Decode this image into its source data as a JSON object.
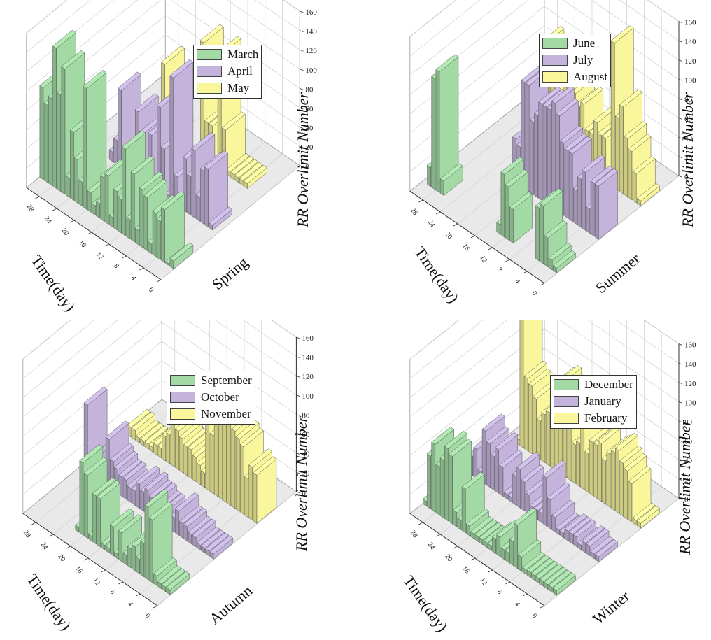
{
  "colors": {
    "green": "#a3d9a5",
    "purple": "#c4b4dc",
    "yellow": "#f9f69b",
    "floor": "#e9e9e9",
    "grid": "#cfcfcf"
  },
  "chart_data": [
    {
      "type": "bar3d",
      "season_label": "Spring",
      "time_label": "Time(day)",
      "z_label": "RR Overlimit Number",
      "z_ticks": [
        "0",
        "20",
        "40",
        "60",
        "80",
        "100",
        "120",
        "140",
        "160"
      ],
      "day_ticks": [
        "0",
        "4",
        "8",
        "12",
        "16",
        "20",
        "24",
        "28"
      ],
      "zlim": [
        0,
        160
      ],
      "legend": [
        "March",
        "April",
        "May"
      ],
      "series": [
        {
          "name": "March",
          "color": "green",
          "values": [
            8,
            2,
            55,
            40,
            45,
            10,
            55,
            60,
            15,
            70,
            20,
            90,
            35,
            40,
            10,
            50,
            45,
            15,
            10,
            20,
            125,
            25,
            45,
            70,
            20,
            130,
            100,
            145,
            90,
            80,
            95
          ]
        },
        {
          "name": "April",
          "color": "purple",
          "values": [
            0,
            5,
            60,
            55,
            25,
            70,
            40,
            55,
            5,
            30,
            130,
            5,
            50,
            90,
            10,
            55,
            5,
            50,
            70,
            30,
            15,
            5,
            80,
            25,
            10
          ]
        },
        {
          "name": "May",
          "color": "yellow",
          "values": [
            0,
            0,
            0,
            5,
            5,
            5,
            5,
            5,
            45,
            120,
            5,
            40,
            40,
            120,
            5,
            0,
            0,
            0,
            0,
            0,
            5,
            10,
            70,
            0
          ]
        }
      ]
    },
    {
      "type": "bar3d",
      "season_label": "Summer",
      "time_label": "Time(day)",
      "z_label": "RR Overlimit Number",
      "z_ticks": [
        "0",
        "20",
        "40",
        "60",
        "80",
        "100",
        "120",
        "140",
        "160"
      ],
      "day_ticks": [
        "0",
        "4",
        "8",
        "12",
        "16",
        "20",
        "24",
        "28"
      ],
      "zlim": [
        0,
        160
      ],
      "legend": [
        "June",
        "July",
        "August"
      ],
      "series": [
        {
          "name": "June",
          "color": "green",
          "values": [
            5,
            10,
            30,
            60,
            55,
            0,
            0,
            0,
            0,
            0,
            35,
            55,
            65,
            10,
            0,
            0,
            0,
            0,
            0,
            0,
            0,
            0,
            0,
            0,
            0,
            0,
            15,
            125,
            115,
            20
          ]
        },
        {
          "name": "July",
          "color": "purple",
          "values": [
            55,
            55,
            25,
            60,
            50,
            35,
            70,
            70,
            75,
            100,
            110,
            100,
            100,
            100,
            85,
            75,
            110,
            110,
            40,
            45
          ]
        },
        {
          "name": "August",
          "color": "yellow",
          "values": [
            5,
            30,
            50,
            60,
            90,
            75,
            150,
            5,
            45,
            45,
            55,
            40,
            40,
            65,
            60,
            70,
            75,
            70,
            60,
            80,
            85,
            75,
            100,
            50
          ]
        }
      ]
    },
    {
      "type": "bar3d",
      "season_label": "Autumn",
      "time_label": "Time(day)",
      "z_label": "RR Overlimit Number",
      "z_ticks": [
        "0",
        "20",
        "40",
        "60",
        "80",
        "100",
        "120",
        "140",
        "160"
      ],
      "day_ticks": [
        "0",
        "4",
        "8",
        "12",
        "16",
        "20",
        "24",
        "28"
      ],
      "zlim": [
        0,
        160
      ],
      "legend": [
        "September",
        "October",
        "November"
      ],
      "series": [
        {
          "name": "September",
          "color": "green",
          "values": [
            5,
            5,
            5,
            10,
            65,
            75,
            35,
            15,
            25,
            20,
            10,
            30,
            5,
            30,
            5,
            5,
            50,
            50,
            5,
            65,
            75,
            5,
            0,
            0,
            0,
            0,
            0,
            0,
            0,
            0
          ]
        },
        {
          "name": "October",
          "color": "purple",
          "values": [
            5,
            5,
            5,
            5,
            10,
            10,
            15,
            15,
            25,
            15,
            10,
            15,
            15,
            20,
            20,
            25,
            20,
            25,
            15,
            15,
            20,
            20,
            25,
            30,
            50,
            10,
            5,
            5,
            15,
            70
          ]
        },
        {
          "name": "November",
          "color": "yellow",
          "values": [
            50,
            55,
            40,
            70,
            75,
            80,
            85,
            80,
            95,
            95,
            60,
            75,
            15,
            20,
            25,
            30,
            30,
            35,
            40,
            45,
            30,
            25,
            10,
            10,
            5,
            5,
            5,
            5,
            10,
            10
          ]
        }
      ]
    },
    {
      "type": "bar3d",
      "season_label": "Winter",
      "time_label": "Time(day)",
      "z_label": "RR Overlimit Number",
      "z_ticks": [
        "0",
        "20",
        "40",
        "60",
        "80",
        "100",
        "120",
        "140",
        "160"
      ],
      "day_ticks": [
        "0",
        "4",
        "8",
        "12",
        "16",
        "20",
        "24",
        "28"
      ],
      "zlim": [
        0,
        160
      ],
      "legend": [
        "December",
        "January",
        "February"
      ],
      "series": [
        {
          "name": "December",
          "color": "green",
          "values": [
            5,
            5,
            5,
            5,
            5,
            5,
            5,
            5,
            15,
            45,
            25,
            10,
            10,
            20,
            15,
            5,
            5,
            5,
            5,
            5,
            10,
            45,
            10,
            15,
            70,
            75,
            60,
            50,
            70,
            55,
            5
          ]
        },
        {
          "name": "January",
          "color": "purple",
          "values": [
            5,
            5,
            10,
            10,
            5,
            10,
            10,
            10,
            5,
            5,
            15,
            30,
            50,
            10,
            10,
            10,
            20,
            30,
            40,
            30,
            5,
            5,
            30,
            45,
            35,
            45,
            55,
            10,
            30,
            20,
            5
          ]
        },
        {
          "name": "February",
          "color": "yellow",
          "values": [
            5,
            5,
            40,
            50,
            55,
            65,
            60,
            55,
            45,
            60,
            55,
            55,
            40,
            75,
            45,
            40,
            60,
            75,
            95,
            90,
            50,
            55,
            50,
            40,
            60,
            70,
            75,
            155,
            5
          ]
        }
      ]
    }
  ]
}
